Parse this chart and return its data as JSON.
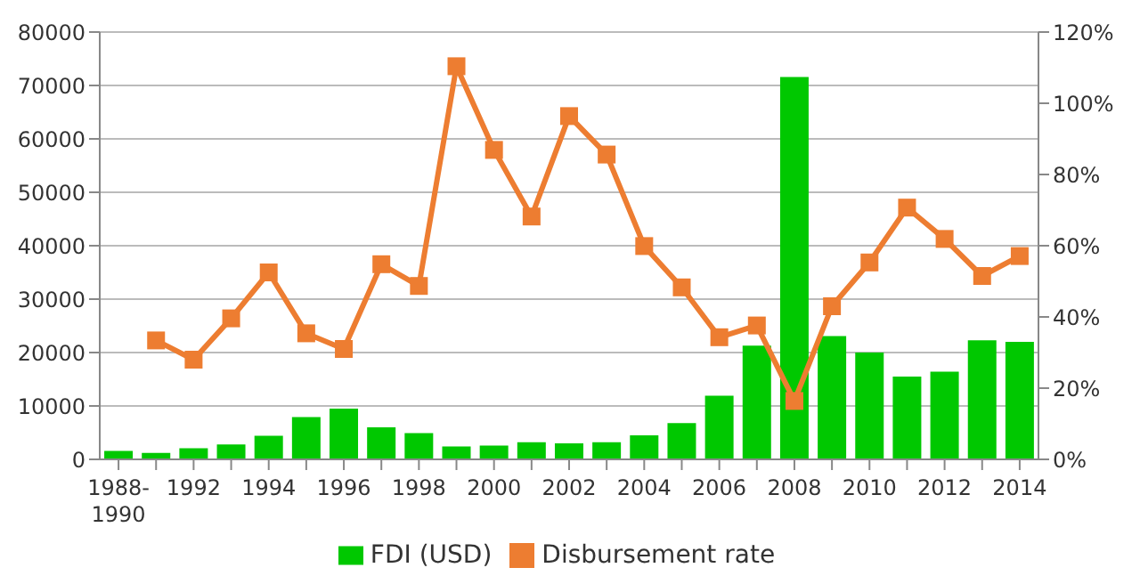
{
  "chart_data": {
    "type": "bar",
    "categories": [
      "1988-1990",
      null,
      "1992",
      null,
      "1994",
      null,
      "1996",
      null,
      "1998",
      null,
      "2000",
      null,
      "2002",
      null,
      "2004",
      null,
      "2006",
      null,
      "2008",
      null,
      "2010",
      null,
      "2012",
      null,
      "2014"
    ],
    "series": [
      {
        "name": "FDI (USD)",
        "color": "#00c800",
        "values": [
          1600,
          1200,
          2100,
          2800,
          4400,
          7900,
          9500,
          6000,
          4900,
          2400,
          2600,
          3200,
          3000,
          3200,
          4500,
          6800,
          11900,
          21300,
          71600,
          23100,
          20000,
          15500,
          16400,
          22300,
          22000
        ]
      },
      {
        "name": "Disbursement rate",
        "type": "line",
        "axis": "y2",
        "color": "#ed7d31",
        "marker": "square",
        "values": [
          null,
          33.4,
          28,
          39.6,
          52.5,
          35.4,
          31,
          54.8,
          48.7,
          110.4,
          86.9,
          68.2,
          96.4,
          85.6,
          59.9,
          48.3,
          34.3,
          37.6,
          16.4,
          43,
          55.3,
          70.7,
          61.9,
          51.5,
          57.1
        ]
      }
    ],
    "ylim": [
      0,
      80000
    ],
    "yticks": [
      0,
      10000,
      20000,
      30000,
      40000,
      50000,
      60000,
      70000,
      80000
    ],
    "y2lim": [
      0,
      120
    ],
    "y2ticks": [
      {
        "value": 0,
        "label": "0%"
      },
      {
        "value": 20,
        "label": "20%"
      },
      {
        "value": 40,
        "label": "40%"
      },
      {
        "value": 60,
        "label": "60%"
      },
      {
        "value": 80,
        "label": "80%"
      },
      {
        "value": 100,
        "label": "100%"
      },
      {
        "value": 120,
        "label": "120%"
      }
    ],
    "grid": "y",
    "legend": "bottom"
  }
}
